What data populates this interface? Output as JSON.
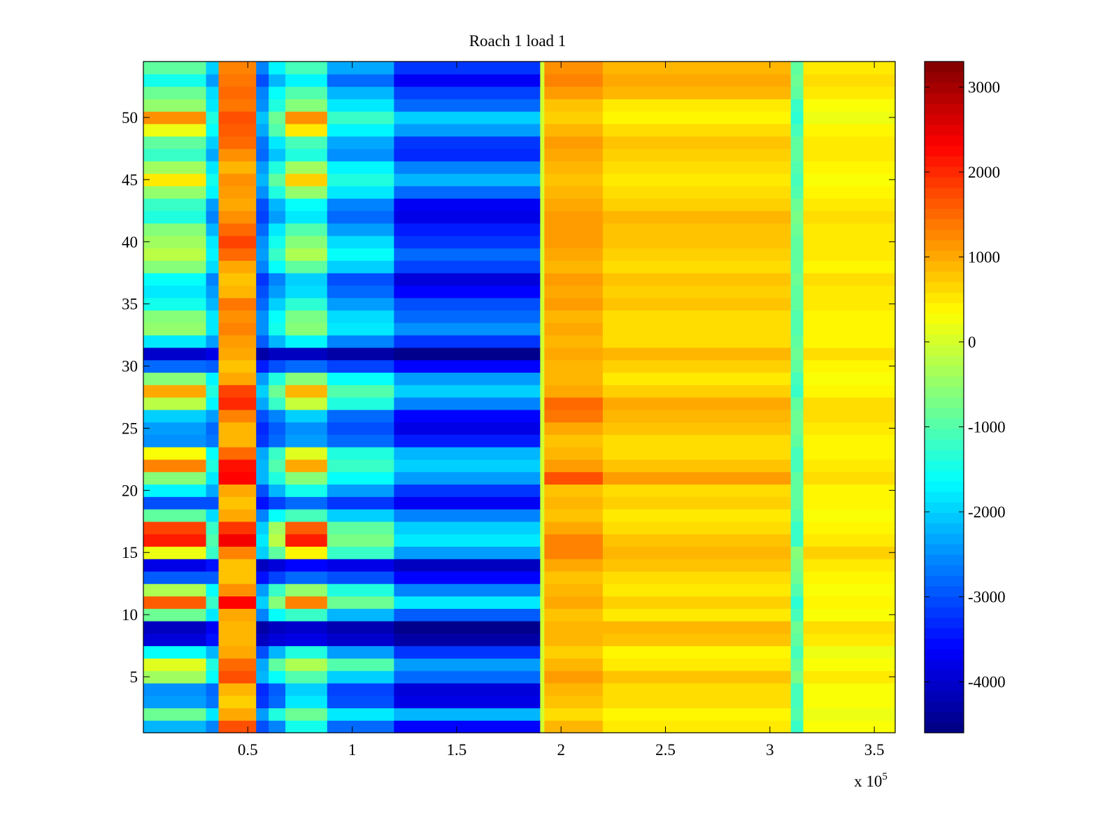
{
  "chart_data": {
    "type": "heatmap",
    "title": "Roach 1 load 1",
    "xlabel": "",
    "ylabel": "",
    "x_multiplier_label": "x 10",
    "x_multiplier_exponent": "5",
    "xlim": [
      0,
      360000
    ],
    "ylim": [
      0.5,
      54.5
    ],
    "xticks": [
      {
        "value": 50000,
        "label": "0.5"
      },
      {
        "value": 100000,
        "label": "1"
      },
      {
        "value": 150000,
        "label": "1.5"
      },
      {
        "value": 200000,
        "label": "2"
      },
      {
        "value": 250000,
        "label": "2.5"
      },
      {
        "value": 300000,
        "label": "3"
      },
      {
        "value": 350000,
        "label": "3.5"
      }
    ],
    "yticks": [
      {
        "value": 5,
        "label": "5"
      },
      {
        "value": 10,
        "label": "10"
      },
      {
        "value": 15,
        "label": "15"
      },
      {
        "value": 20,
        "label": "20"
      },
      {
        "value": 25,
        "label": "25"
      },
      {
        "value": 30,
        "label": "30"
      },
      {
        "value": 35,
        "label": "35"
      },
      {
        "value": 40,
        "label": "40"
      },
      {
        "value": 45,
        "label": "45"
      },
      {
        "value": 50,
        "label": "50"
      }
    ],
    "colormap": "jet",
    "colorbar": {
      "clim": [
        -4600,
        3300
      ],
      "ticks": [
        {
          "value": 3000,
          "label": "3000"
        },
        {
          "value": 2000,
          "label": "2000"
        },
        {
          "value": 1000,
          "label": "1000"
        },
        {
          "value": 0,
          "label": "0"
        },
        {
          "value": -1000,
          "label": "-1000"
        },
        {
          "value": -2000,
          "label": "-2000"
        },
        {
          "value": -3000,
          "label": "-3000"
        },
        {
          "value": -4000,
          "label": "-4000"
        }
      ]
    },
    "segments": [
      {
        "x_start": 0,
        "x_end": 30000,
        "region": "left"
      },
      {
        "x_start": 30000,
        "x_end": 36000,
        "region": "dip1"
      },
      {
        "x_start": 36000,
        "x_end": 54000,
        "region": "peak1"
      },
      {
        "x_start": 54000,
        "x_end": 60000,
        "region": "dip2"
      },
      {
        "x_start": 60000,
        "x_end": 68000,
        "region": "mid_a"
      },
      {
        "x_start": 68000,
        "x_end": 88000,
        "region": "peak2"
      },
      {
        "x_start": 88000,
        "x_end": 120000,
        "region": "mid_b"
      },
      {
        "x_start": 120000,
        "x_end": 190000,
        "region": "deep"
      },
      {
        "x_start": 190000,
        "x_end": 192000,
        "region": "edge"
      },
      {
        "x_start": 192000,
        "x_end": 220000,
        "region": "right_hi"
      },
      {
        "x_start": 220000,
        "x_end": 310000,
        "region": "right"
      },
      {
        "x_start": 310000,
        "x_end": 316000,
        "region": "stripe"
      },
      {
        "x_start": 316000,
        "x_end": 360000,
        "region": "right_end"
      }
    ],
    "rows": [
      {
        "y": 1,
        "values": [
          -2200,
          -2600,
          1700,
          -3000,
          -2600,
          -1500,
          -2800,
          -3600,
          0,
          900,
          500,
          -1200,
          300
        ]
      },
      {
        "y": 2,
        "values": [
          -800,
          -1800,
          1000,
          -2400,
          -1400,
          -800,
          -1800,
          -2200,
          0,
          600,
          400,
          -1000,
          200
        ]
      },
      {
        "y": 3,
        "values": [
          -2400,
          -2700,
          700,
          -3200,
          -2800,
          -1800,
          -3000,
          -3800,
          0,
          800,
          600,
          -1100,
          300
        ]
      },
      {
        "y": 4,
        "values": [
          -2500,
          -2800,
          900,
          -3300,
          -2900,
          -2000,
          -3100,
          -3900,
          0,
          900,
          600,
          -1100,
          300
        ]
      },
      {
        "y": 5,
        "values": [
          -400,
          -1600,
          1700,
          -2200,
          -1600,
          -1000,
          -2000,
          -2800,
          0,
          1100,
          800,
          -700,
          500
        ]
      },
      {
        "y": 6,
        "values": [
          100,
          -1400,
          1500,
          -2300,
          -900,
          -300,
          -1000,
          -2400,
          0,
          900,
          500,
          -900,
          300
        ]
      },
      {
        "y": 7,
        "values": [
          -1600,
          -2200,
          1000,
          -3000,
          -2200,
          -1400,
          -2400,
          -3200,
          0,
          700,
          400,
          -1100,
          200
        ]
      },
      {
        "y": 8,
        "values": [
          -3900,
          -3500,
          900,
          -4100,
          -3900,
          -3800,
          -4000,
          -4300,
          0,
          900,
          800,
          -900,
          500
        ]
      },
      {
        "y": 9,
        "values": [
          -4100,
          -3700,
          900,
          -4300,
          -4100,
          -4000,
          -4200,
          -4500,
          0,
          900,
          900,
          -800,
          600
        ]
      },
      {
        "y": 10,
        "values": [
          -800,
          -1800,
          1000,
          -2600,
          -1600,
          -1200,
          -2200,
          -2900,
          0,
          800,
          500,
          -1100,
          300
        ]
      },
      {
        "y": 11,
        "values": [
          1600,
          -1200,
          2300,
          -2000,
          -600,
          1300,
          -800,
          -1800,
          0,
          1000,
          700,
          -1300,
          400
        ]
      },
      {
        "y": 12,
        "values": [
          -300,
          -1600,
          1200,
          -2400,
          -1200,
          -500,
          -1400,
          -2600,
          0,
          900,
          500,
          -1000,
          300
        ]
      },
      {
        "y": 13,
        "values": [
          -2900,
          -2900,
          800,
          -3500,
          -3100,
          -2800,
          -3000,
          -3600,
          0,
          800,
          600,
          -800,
          400
        ]
      },
      {
        "y": 14,
        "values": [
          -3800,
          -3500,
          800,
          -4100,
          -3900,
          -3600,
          -3800,
          -4100,
          0,
          1000,
          800,
          -700,
          500
        ]
      },
      {
        "y": 15,
        "values": [
          200,
          -1200,
          1300,
          -2000,
          -900,
          400,
          -1200,
          -2400,
          0,
          1300,
          900,
          -600,
          700
        ]
      },
      {
        "y": 16,
        "values": [
          2100,
          -1000,
          2400,
          -1800,
          -200,
          2100,
          -700,
          -1800,
          0,
          1300,
          800,
          -1200,
          500
        ]
      },
      {
        "y": 17,
        "values": [
          1800,
          -1200,
          1900,
          -2000,
          -400,
          1600,
          -900,
          -2000,
          0,
          1000,
          600,
          -1200,
          400
        ]
      },
      {
        "y": 18,
        "values": [
          -900,
          -1900,
          1000,
          -2600,
          -1600,
          -1100,
          -2000,
          -2600,
          0,
          800,
          500,
          -1000,
          300
        ]
      },
      {
        "y": 19,
        "values": [
          -3000,
          -3000,
          800,
          -3500,
          -3100,
          -2800,
          -3200,
          -3700,
          0,
          900,
          700,
          -900,
          400
        ]
      },
      {
        "y": 20,
        "values": [
          -1700,
          -2300,
          1000,
          -3000,
          -2200,
          -1500,
          -2400,
          -3200,
          0,
          800,
          600,
          -900,
          400
        ]
      },
      {
        "y": 21,
        "values": [
          -600,
          -1800,
          2300,
          -2200,
          -1400,
          -600,
          -1600,
          -2400,
          0,
          1700,
          1100,
          -900,
          600
        ]
      },
      {
        "y": 22,
        "values": [
          1300,
          -1400,
          2200,
          -2200,
          -1000,
          1000,
          -1200,
          -2000,
          0,
          1100,
          800,
          -1100,
          500
        ]
      },
      {
        "y": 23,
        "values": [
          300,
          -1600,
          1500,
          -2300,
          -1200,
          100,
          -1400,
          -2200,
          0,
          900,
          600,
          -1100,
          400
        ]
      },
      {
        "y": 24,
        "values": [
          -2500,
          -2700,
          900,
          -3200,
          -2800,
          -2400,
          -2800,
          -3400,
          0,
          800,
          600,
          -900,
          400
        ]
      },
      {
        "y": 25,
        "values": [
          -2400,
          -2800,
          900,
          -3300,
          -2900,
          -2500,
          -3000,
          -3800,
          0,
          1000,
          800,
          -800,
          500
        ]
      },
      {
        "y": 26,
        "values": [
          -2000,
          -2400,
          1300,
          -3000,
          -2600,
          -2000,
          -2800,
          -3600,
          0,
          1400,
          900,
          -800,
          600
        ]
      },
      {
        "y": 27,
        "values": [
          -200,
          -1700,
          2000,
          -2300,
          -1200,
          -100,
          -1400,
          -2600,
          0,
          1500,
          1000,
          -900,
          600
        ]
      },
      {
        "y": 28,
        "values": [
          1000,
          -1400,
          1800,
          -2000,
          -800,
          900,
          -1000,
          -2000,
          0,
          1000,
          700,
          -1200,
          400
        ]
      },
      {
        "y": 29,
        "values": [
          -600,
          -1700,
          1000,
          -2400,
          -1400,
          -600,
          -1600,
          -2400,
          0,
          900,
          500,
          -1100,
          300
        ]
      },
      {
        "y": 30,
        "values": [
          -2800,
          -2900,
          800,
          -3400,
          -3000,
          -2800,
          -3100,
          -3600,
          0,
          900,
          700,
          -900,
          400
        ]
      },
      {
        "y": 31,
        "values": [
          -4000,
          -3800,
          1000,
          -4300,
          -4100,
          -4100,
          -4300,
          -4500,
          0,
          1000,
          900,
          -800,
          600
        ]
      },
      {
        "y": 32,
        "values": [
          -1800,
          -2400,
          1100,
          -2900,
          -2200,
          -1700,
          -2600,
          -3200,
          0,
          900,
          600,
          -900,
          400
        ]
      },
      {
        "y": 33,
        "values": [
          -500,
          -1800,
          1300,
          -2500,
          -1500,
          -600,
          -1800,
          -2500,
          0,
          1000,
          600,
          -1000,
          400
        ]
      },
      {
        "y": 34,
        "values": [
          -600,
          -1800,
          1200,
          -2500,
          -1600,
          -700,
          -1900,
          -2800,
          0,
          900,
          600,
          -1000,
          400
        ]
      },
      {
        "y": 35,
        "values": [
          -1500,
          -2200,
          1400,
          -2800,
          -2000,
          -1300,
          -2400,
          -3000,
          0,
          1100,
          800,
          -900,
          500
        ]
      },
      {
        "y": 36,
        "values": [
          -1800,
          -2400,
          900,
          -3000,
          -2400,
          -1900,
          -2800,
          -3600,
          0,
          1000,
          700,
          -900,
          500
        ]
      },
      {
        "y": 37,
        "values": [
          -1600,
          -2600,
          800,
          -3200,
          -2600,
          -2000,
          -3000,
          -3900,
          0,
          1100,
          800,
          -800,
          600
        ]
      },
      {
        "y": 38,
        "values": [
          -600,
          -1900,
          1000,
          -2600,
          -1600,
          -900,
          -2000,
          -3100,
          0,
          900,
          600,
          -900,
          400
        ]
      },
      {
        "y": 39,
        "values": [
          -200,
          -1700,
          1500,
          -2400,
          -1200,
          -300,
          -1600,
          -2800,
          0,
          1000,
          700,
          -900,
          500
        ]
      },
      {
        "y": 40,
        "values": [
          -400,
          -1800,
          1800,
          -2500,
          -1500,
          -600,
          -1900,
          -3200,
          0,
          1100,
          800,
          -900,
          500
        ]
      },
      {
        "y": 41,
        "values": [
          -600,
          -2200,
          1500,
          -2800,
          -1800,
          -1000,
          -2400,
          -3400,
          0,
          1100,
          800,
          -800,
          500
        ]
      },
      {
        "y": 42,
        "values": [
          -1400,
          -2600,
          1200,
          -3100,
          -2400,
          -1800,
          -2800,
          -3800,
          0,
          1100,
          900,
          -700,
          600
        ]
      },
      {
        "y": 43,
        "values": [
          -1200,
          -2400,
          1000,
          -3000,
          -2200,
          -1600,
          -2600,
          -3700,
          0,
          1000,
          700,
          -800,
          500
        ]
      },
      {
        "y": 44,
        "values": [
          -500,
          -1700,
          1100,
          -2500,
          -1400,
          -500,
          -1800,
          -2800,
          0,
          900,
          600,
          -1000,
          400
        ]
      },
      {
        "y": 45,
        "values": [
          500,
          -1500,
          1200,
          -2200,
          -900,
          700,
          -1400,
          -2200,
          0,
          800,
          500,
          -1100,
          300
        ]
      },
      {
        "y": 46,
        "values": [
          -400,
          -1800,
          900,
          -2400,
          -1400,
          -400,
          -1700,
          -2600,
          0,
          900,
          600,
          -1000,
          400
        ]
      },
      {
        "y": 47,
        "values": [
          -1200,
          -2300,
          1200,
          -2800,
          -2100,
          -1400,
          -2500,
          -3300,
          0,
          1000,
          700,
          -900,
          500
        ]
      },
      {
        "y": 48,
        "values": [
          -900,
          -2000,
          1500,
          -2700,
          -1800,
          -1100,
          -2300,
          -3200,
          0,
          1100,
          800,
          -900,
          500
        ]
      },
      {
        "y": 49,
        "values": [
          200,
          -1600,
          1600,
          -2300,
          -1000,
          500,
          -1700,
          -2400,
          0,
          900,
          600,
          -1100,
          400
        ]
      },
      {
        "y": 50,
        "values": [
          1200,
          -1400,
          1700,
          -2100,
          -800,
          1200,
          -1200,
          -2000,
          0,
          700,
          400,
          -1300,
          200
        ]
      },
      {
        "y": 51,
        "values": [
          -500,
          -1800,
          1400,
          -2500,
          -1400,
          -600,
          -1800,
          -2800,
          0,
          800,
          500,
          -1200,
          300
        ]
      },
      {
        "y": 52,
        "values": [
          -800,
          -1900,
          1500,
          -2600,
          -1600,
          -1000,
          -2200,
          -3100,
          0,
          1100,
          900,
          -900,
          500
        ]
      },
      {
        "y": 53,
        "values": [
          -1500,
          -2400,
          1400,
          -3000,
          -2200,
          -1700,
          -2800,
          -3700,
          0,
          1300,
          1000,
          -800,
          600
        ]
      },
      {
        "y": 54,
        "values": [
          -900,
          -2000,
          1300,
          -2600,
          -1700,
          -1100,
          -2300,
          -3200,
          0,
          1200,
          900,
          -900,
          500
        ]
      }
    ]
  }
}
